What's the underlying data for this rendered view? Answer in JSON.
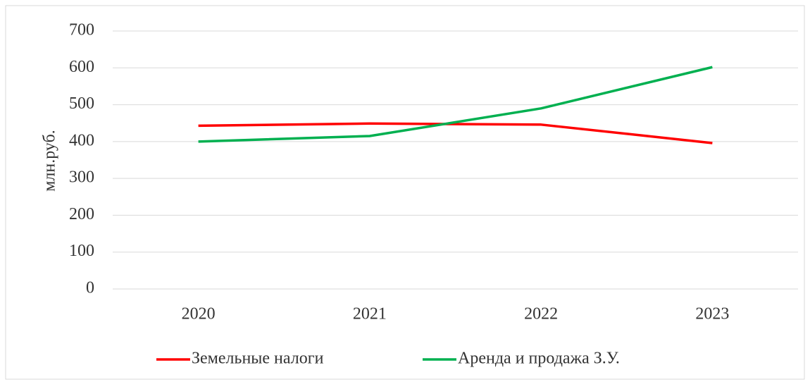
{
  "chart_data": {
    "type": "line",
    "y_label": "млн.руб.",
    "categories": [
      "2020",
      "2021",
      "2022",
      "2023"
    ],
    "series": [
      {
        "name": "Земельные налоги",
        "color": "#ff0000",
        "values": [
          443,
          449,
          446,
          396
        ]
      },
      {
        "name": "Аренда и продажа З.У.",
        "color": "#00b050",
        "values": [
          400,
          415,
          490,
          602
        ]
      }
    ],
    "ylim": [
      0,
      700
    ],
    "yticks": [
      0,
      100,
      200,
      300,
      400,
      500,
      600,
      700
    ],
    "grid": true,
    "legend": "bottom"
  }
}
